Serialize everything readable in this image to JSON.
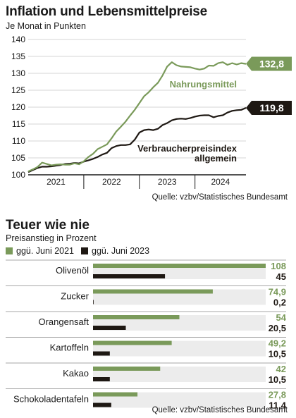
{
  "chart1": {
    "title": "Inflation und Lebensmittelpreise",
    "subtitle": "Je Monat in Punkten",
    "source": "Quelle: vzbv/Statistisches Bundesamt",
    "colors": {
      "food": "#7a9a5a",
      "cpi": "#1e1813"
    },
    "chart_data": {
      "type": "line",
      "x_labels": [
        "2021",
        "2022",
        "2023",
        "2024"
      ],
      "ylim": [
        100,
        140
      ],
      "yticks": [
        100,
        105,
        110,
        115,
        120,
        125,
        130,
        135,
        140
      ],
      "series": [
        {
          "name": "Nahrungsmittel",
          "end_label": "132,8",
          "values": [
            101.0,
            101.6,
            102.3,
            103.6,
            103.2,
            102.8,
            103.0,
            103.1,
            103.0,
            103.0,
            103.4,
            103.1,
            104.0,
            105.3,
            106.2,
            107.6,
            108.3,
            109.0,
            110.8,
            112.8,
            114.2,
            115.7,
            117.5,
            119.2,
            121.2,
            123.2,
            124.4,
            125.9,
            127.2,
            129.4,
            132.0,
            133.3,
            132.4,
            132.0,
            131.9,
            131.8,
            131.4,
            131.1,
            131.4,
            132.3,
            132.2,
            133.0,
            133.3,
            132.5,
            133.0,
            132.6,
            133.0,
            132.8
          ]
        },
        {
          "name": "Verbraucherpreisindex allgemein",
          "end_label": "119,8",
          "values": [
            100.8,
            101.4,
            102.0,
            102.4,
            102.4,
            102.5,
            102.7,
            102.9,
            103.2,
            103.3,
            103.5,
            103.4,
            103.9,
            104.3,
            104.7,
            105.3,
            106.0,
            106.5,
            107.9,
            108.5,
            108.8,
            108.8,
            109.0,
            110.4,
            112.5,
            113.2,
            113.4,
            113.2,
            113.6,
            114.7,
            115.3,
            116.1,
            116.5,
            116.6,
            116.5,
            116.8,
            117.2,
            117.5,
            117.6,
            117.6,
            117.0,
            117.4,
            117.6,
            118.4,
            118.9,
            119.1,
            119.2,
            119.8
          ]
        }
      ],
      "annotations": [
        "Nahrungsmittel",
        "Verbraucherpreisindex",
        "allgemein"
      ]
    }
  },
  "chart2": {
    "title": "Teuer wie nie",
    "subtitle": "Preisanstieg in Prozent",
    "legend": [
      "ggü. Juni 2021",
      "ggü. Juni 2023"
    ],
    "source": "Quelle: vzbv/Statistisches Bundesamt",
    "colors": {
      "s2021": "#7a9a5a",
      "s2023": "#1e1813",
      "track": "#ececec"
    },
    "chart_data": {
      "type": "bar",
      "categories": [
        "Olivenöl",
        "Zucker",
        "Orangensaft",
        "Kartoffeln",
        "Kakao",
        "Schokoladentafeln"
      ],
      "series": [
        {
          "name": "ggü. Juni 2021",
          "values": [
            108,
            74.9,
            54,
            49.2,
            42,
            27.8
          ],
          "labels": [
            "108",
            "74,9",
            "54",
            "49,2",
            "42",
            "27,8"
          ]
        },
        {
          "name": "ggü. Juni 2023",
          "values": [
            45,
            0.2,
            20.5,
            10.5,
            10.5,
            11.4
          ],
          "labels": [
            "45",
            "0,2",
            "20,5",
            "10,5",
            "10,5",
            "11,4"
          ]
        }
      ],
      "xlim": [
        0,
        108
      ]
    }
  }
}
